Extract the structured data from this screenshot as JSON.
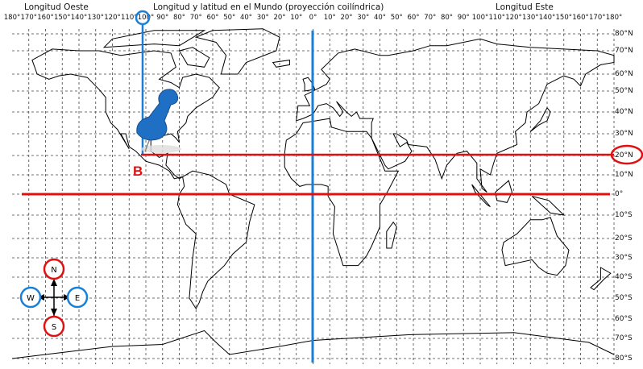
{
  "header": {
    "west_label": "Longitud Oeste",
    "title": "Longitud y latitud en el Mundo (proyección coilíndrica)",
    "east_label": "Longitud Este"
  },
  "longitude_labels": [
    "180°",
    "170°",
    "160°",
    "150°",
    "140°",
    "130°",
    "120°",
    "110°",
    "100°",
    "90°",
    "80°",
    "70°",
    "60°",
    "50°",
    "40°",
    "30°",
    "20°",
    "10°",
    "0°",
    "10°",
    "20°",
    "30°",
    "40°",
    "50°",
    "60°",
    "70°",
    "80°",
    "90°",
    "100°",
    "110°",
    "120°",
    "130°",
    "140°",
    "150°",
    "160°",
    "170°",
    "180°"
  ],
  "latitude_labels": [
    "80°N",
    "70°N",
    "60°N",
    "50°N",
    "40°N",
    "30°N",
    "20°N",
    "10°N",
    "0°",
    "10°S",
    "20°S",
    "30°S",
    "40°S",
    "50°S",
    "60°S",
    "70°S",
    "80°S"
  ],
  "highlight": {
    "marker_label": "B",
    "latitude": "20°N",
    "longitude": "100°",
    "longitude_direction": "W"
  },
  "compass": {
    "north": "N",
    "south": "S",
    "west": "W",
    "east": "E"
  },
  "colors": {
    "red": "#e01010",
    "blue": "#1a7fd6",
    "pin": "#1f6fc4"
  }
}
